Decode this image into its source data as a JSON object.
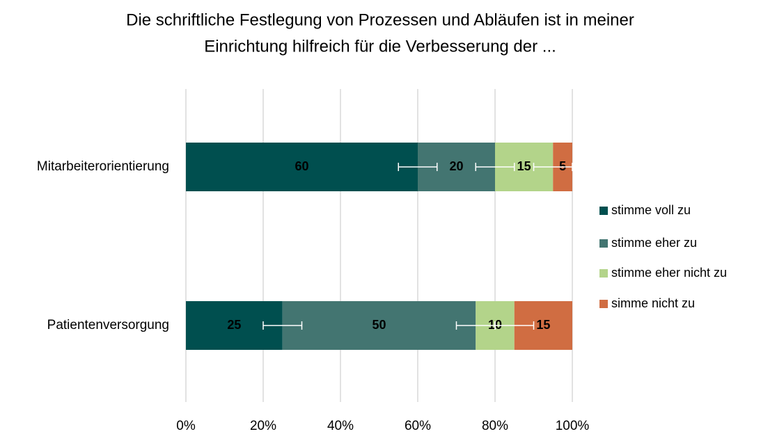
{
  "chart_data": {
    "type": "stacked-bar-horizontal",
    "title": [
      "Die schriftliche Festlegung von Prozessen und Abläufen ist in meiner",
      "Einrichtung hilfreich für die Verbesserung der ..."
    ],
    "categories": [
      "Mitarbeiterorientierung",
      "Patientenversorgung"
    ],
    "series": [
      {
        "name": "stimme voll zu",
        "color": "#004f4f",
        "label_color": "#ffffff",
        "values": [
          60,
          25
        ],
        "errors": [
          5,
          5
        ]
      },
      {
        "name": "stimme eher zu",
        "color": "#437571",
        "label_color": "#ffffff",
        "values": [
          20,
          50
        ],
        "errors": [
          5,
          5
        ]
      },
      {
        "name": "stimme eher nicht zu",
        "color": "#b3d48a",
        "label_color": "#000000",
        "values": [
          15,
          10
        ],
        "errors": [
          5,
          5
        ]
      },
      {
        "name": "simme nicht zu",
        "color": "#d06d42",
        "label_color": "#000000",
        "values": [
          5,
          15
        ]
      }
    ],
    "xlim": [
      0,
      100
    ],
    "xticks": [
      {
        "value": 0,
        "label": "0%"
      },
      {
        "value": 20,
        "label": "20%"
      },
      {
        "value": 40,
        "label": "40%"
      },
      {
        "value": 60,
        "label": "60%"
      },
      {
        "value": 80,
        "label": "80%"
      },
      {
        "value": 100,
        "label": "100%"
      }
    ],
    "grid": true,
    "legend": "right"
  }
}
